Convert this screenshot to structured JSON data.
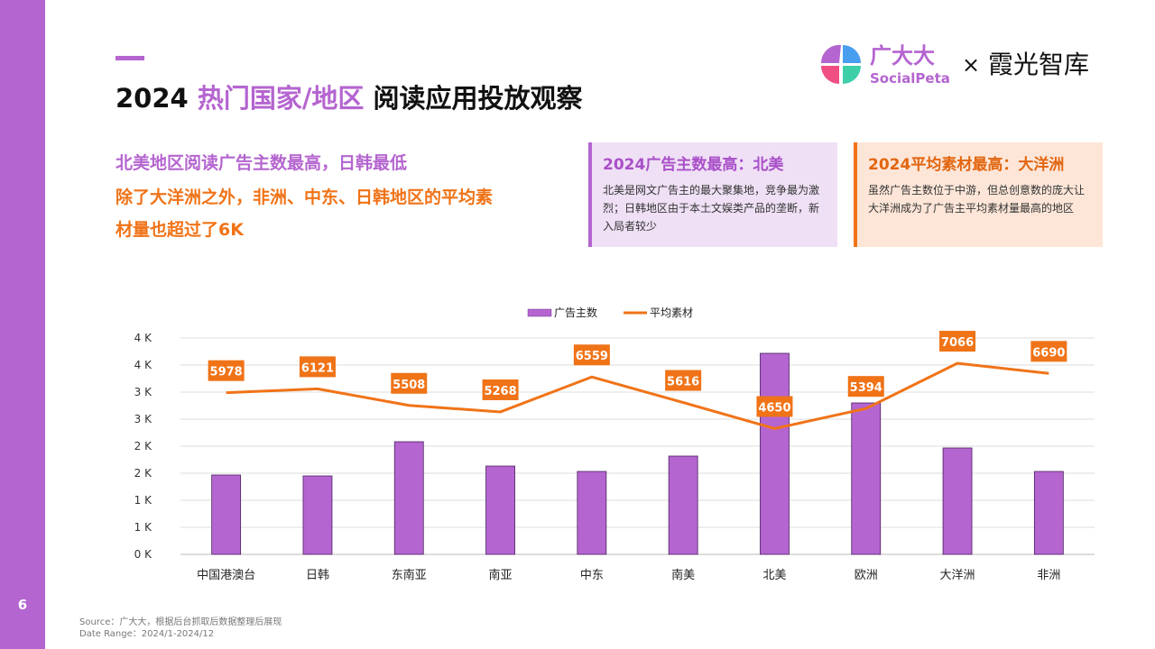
{
  "page_number": "6",
  "header": {
    "year": "2024",
    "highlight": "热门国家/地区",
    "rest": "阅读应用投放观察"
  },
  "logo": {
    "brand": "广大大",
    "brand_en": "SocialPeta",
    "times": "×",
    "partner": "霞光智库"
  },
  "summary": [
    "北美地区阅读广告主数最高，日韩最低",
    "除了大洋洲之外，非洲、中东、日韩地区的平均素",
    "材量也超过了6K"
  ],
  "cards": [
    {
      "title": "2024广告主数最高：北美",
      "body": "北美是网文广告主的最大聚集地，竞争最为激烈；日韩地区由于本土文娱类产品的垄断，新入局者较少"
    },
    {
      "title": "2024平均素材最高：大洋洲",
      "body": "虽然广告主数位于中游，但总创意数的庞大让大洋洲成为了广告主平均素材量最高的地区"
    }
  ],
  "chart_data": {
    "type": "bar",
    "categories": [
      "中国港澳台",
      "日韩",
      "东南亚",
      "南亚",
      "中东",
      "南美",
      "北美",
      "欧洲",
      "大洋洲",
      "非洲"
    ],
    "series": [
      {
        "name": "广告主数",
        "type": "bar",
        "color": "#b565cf",
        "values": [
          1467,
          1450,
          2083,
          1633,
          1533,
          1817,
          3717,
          2800,
          1967,
          1533
        ]
      },
      {
        "name": "平均素材",
        "type": "line",
        "axis": "y2",
        "color": "#f07318",
        "values": [
          5978,
          6121,
          5508,
          5268,
          6559,
          5616,
          4650,
          5394,
          7066,
          6690
        ]
      }
    ],
    "ylim": [
      0,
      4000
    ],
    "yticks": [
      {
        "value": 0,
        "label": "0 K"
      },
      {
        "value": 500,
        "label": "1 K"
      },
      {
        "value": 1000,
        "label": "1 K"
      },
      {
        "value": 1500,
        "label": "2 K"
      },
      {
        "value": 2000,
        "label": "2 K"
      },
      {
        "value": 2500,
        "label": "3 K"
      },
      {
        "value": 3000,
        "label": "3 K"
      },
      {
        "value": 3500,
        "label": "4 K"
      },
      {
        "value": 4000,
        "label": "4 K"
      }
    ],
    "y2lim": [
      0,
      8000
    ],
    "grid": true,
    "legend": "top"
  },
  "footer": {
    "source": "Source：广大大，根据后台抓取后数据整理后展现",
    "range": "Date Range：2024/1-2024/12"
  }
}
